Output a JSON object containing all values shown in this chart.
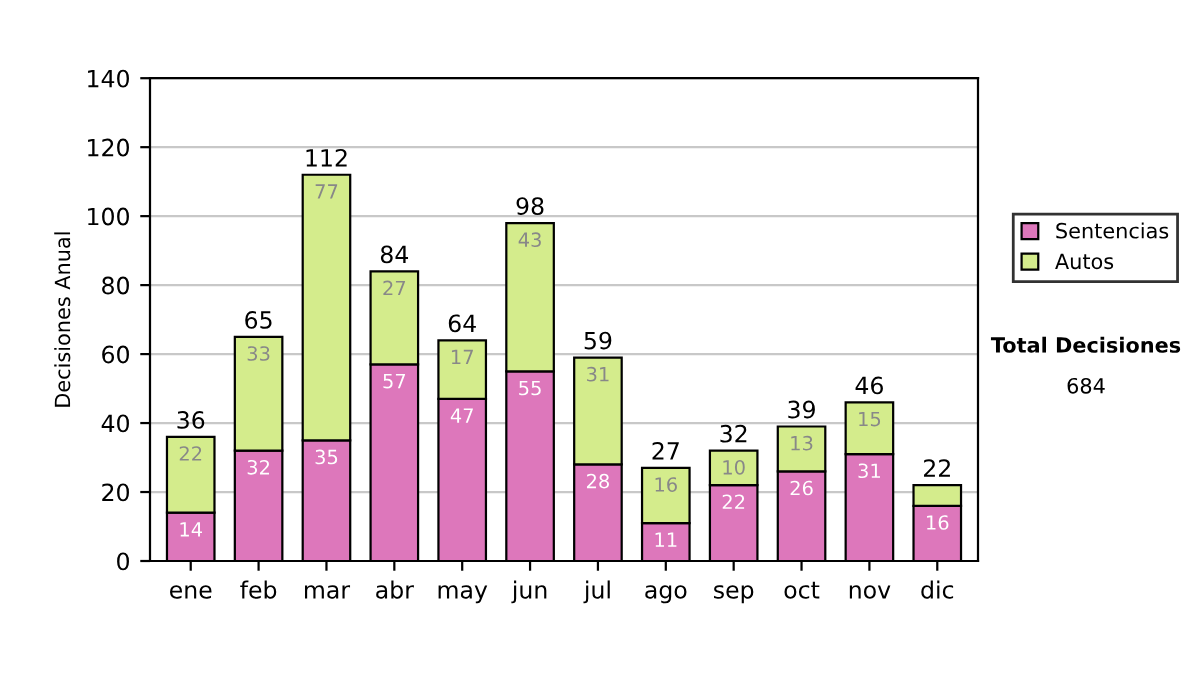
{
  "chart_data": {
    "type": "bar",
    "stacked": true,
    "ylabel": "Decisiones Anual",
    "categories": [
      "ene",
      "feb",
      "mar",
      "abr",
      "may",
      "jun",
      "jul",
      "ago",
      "sep",
      "oct",
      "nov",
      "dic"
    ],
    "series": [
      {
        "name": "Sentencias",
        "color": "#dd77bb",
        "values": [
          14,
          32,
          35,
          57,
          47,
          55,
          28,
          11,
          22,
          26,
          31,
          16
        ],
        "value_labels": [
          "14",
          "32",
          "35",
          "57",
          "47",
          "55",
          "28",
          "11",
          "22",
          "26",
          "31",
          "16"
        ]
      },
      {
        "name": "Autos",
        "color": "#d4ec8c",
        "values": [
          22,
          33,
          77,
          27,
          17,
          43,
          31,
          16,
          10,
          13,
          15,
          6
        ],
        "value_labels": [
          "22",
          "33",
          "77",
          "27",
          "17",
          "43",
          "31",
          "16",
          "10",
          "13",
          "15",
          null
        ]
      }
    ],
    "totals": [
      "36",
      "65",
      "112",
      "84",
      "64",
      "98",
      "59",
      "27",
      "32",
      "39",
      "46",
      "22"
    ],
    "ylim": [
      0,
      140
    ],
    "yticks": [
      0,
      20,
      40,
      60,
      80,
      100,
      120,
      140
    ],
    "grid": "y",
    "legend": "right",
    "annotations": [
      "Total Decisiones",
      "684"
    ]
  }
}
